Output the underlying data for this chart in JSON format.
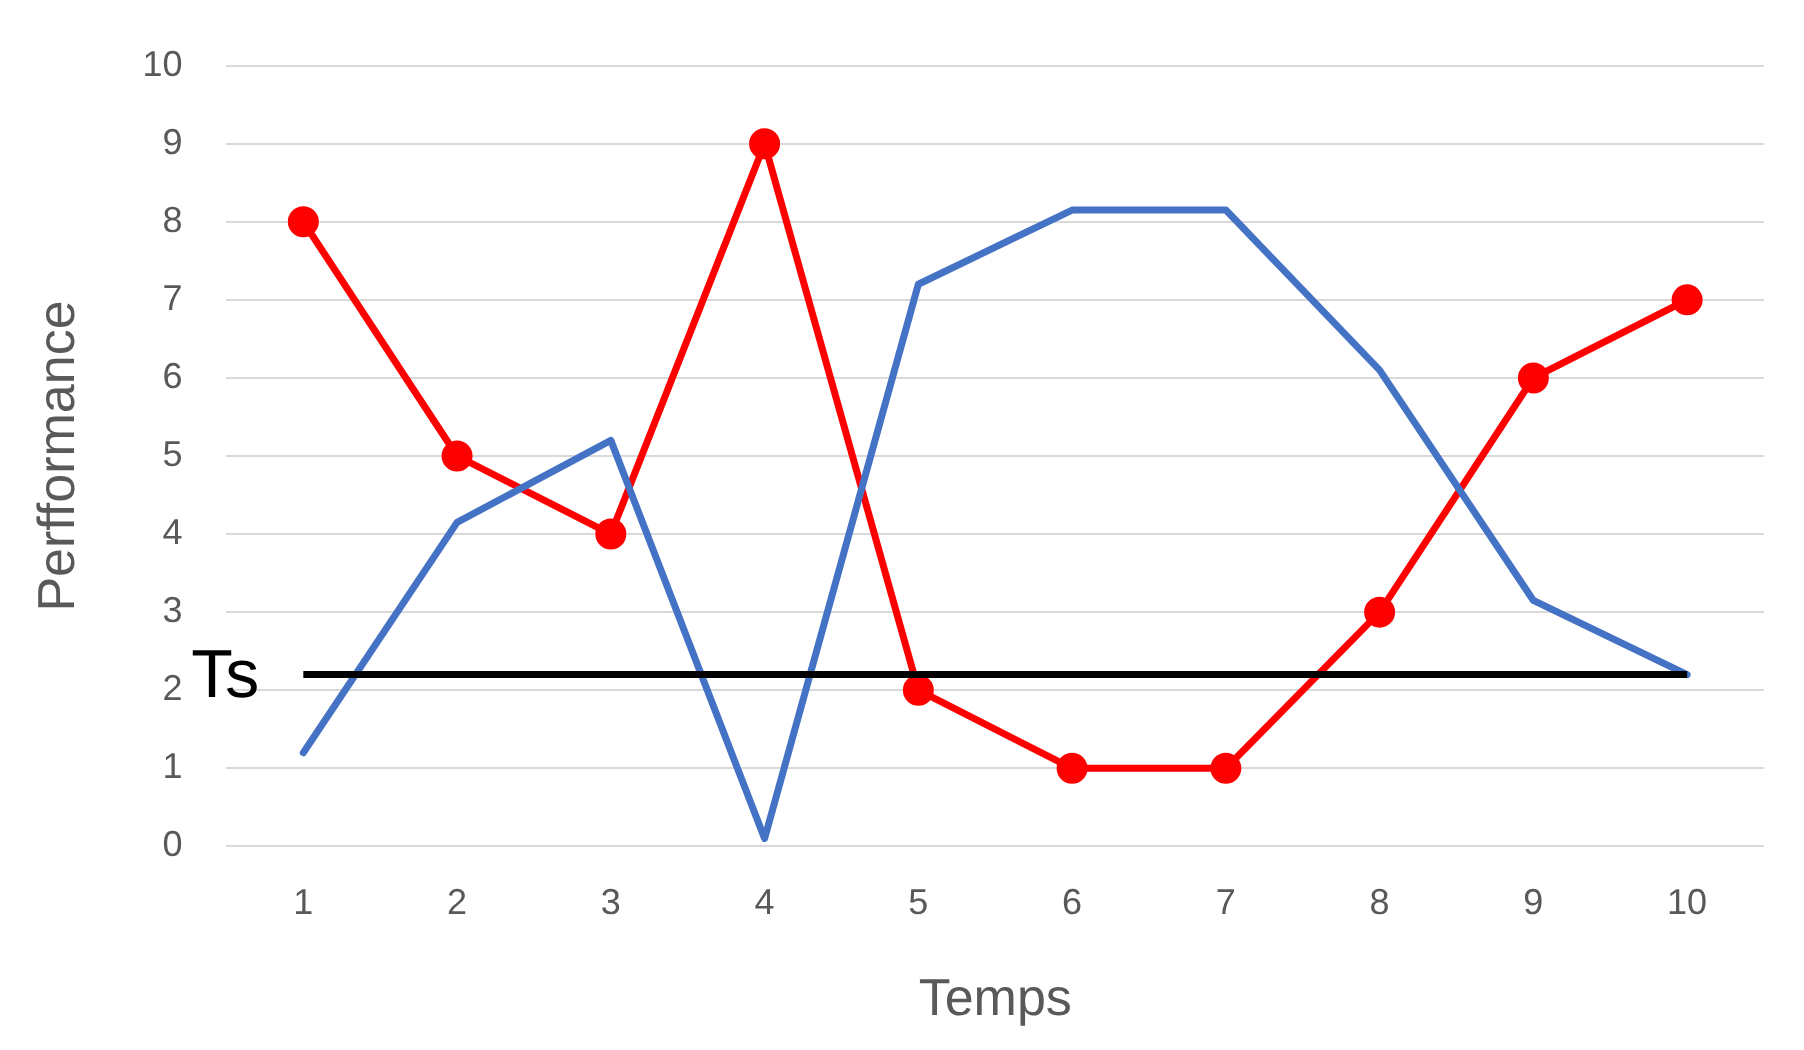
{
  "chart_data": {
    "type": "line",
    "xlabel": "Temps",
    "ylabel": "Perfformance",
    "categories": [
      "1",
      "2",
      "3",
      "4",
      "5",
      "6",
      "7",
      "8",
      "9",
      "10"
    ],
    "series": [
      {
        "color": "#4472c4",
        "marker": "none",
        "values": [
          1.2,
          4.15,
          5.2,
          0.1,
          7.2,
          8.15,
          8.15,
          6.1,
          3.15,
          2.2
        ]
      },
      {
        "color": "#ff0000",
        "marker": "circle",
        "values": [
          8,
          5,
          4,
          9,
          2,
          1,
          1,
          3,
          6,
          7
        ]
      }
    ],
    "ylim": [
      0,
      10
    ],
    "yticks": [
      0,
      1,
      2,
      3,
      4,
      5,
      6,
      7,
      8,
      9,
      10
    ],
    "grid": "y",
    "ref_lines": [
      {
        "axis": "y",
        "value": 2.2,
        "label": "Ts",
        "color": "#000000"
      }
    ]
  }
}
